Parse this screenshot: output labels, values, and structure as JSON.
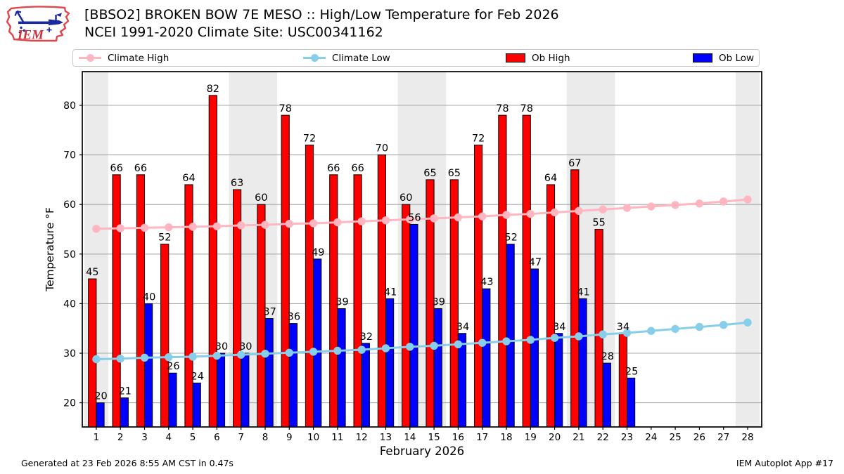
{
  "header": {
    "logo_text": "IEM",
    "title_line1": "[BBSO2] BROKEN BOW 7E MESO :: High/Low Temperature for Feb 2026",
    "title_line2": "NCEI 1991-2020 Climate Site: USC00341162"
  },
  "legend": {
    "items": [
      {
        "label": "Climate High",
        "marker": "line-dot",
        "color": "#ffb6c1"
      },
      {
        "label": "Climate Low",
        "marker": "line-dot",
        "color": "#87ceeb"
      },
      {
        "label": "Ob High",
        "marker": "swatch",
        "color": "#ff0000"
      },
      {
        "label": "Ob Low",
        "marker": "swatch",
        "color": "#0000ff"
      }
    ]
  },
  "footer": {
    "left": "Generated at 23 Feb 2026 8:55 AM CST in 0.47s",
    "right": "IEM Autoplot App #17"
  },
  "chart_data": {
    "type": "bar",
    "title": "[BBSO2] BROKEN BOW 7E MESO :: High/Low Temperature for Feb 2026",
    "subtitle": "NCEI 1991-2020 Climate Site: USC00341162",
    "xlabel": "February 2026",
    "ylabel": "Temperature °F",
    "x": [
      1,
      2,
      3,
      4,
      5,
      6,
      7,
      8,
      9,
      10,
      11,
      12,
      13,
      14,
      15,
      16,
      17,
      18,
      19,
      20,
      21,
      22,
      23,
      24,
      25,
      26,
      27,
      28
    ],
    "yticks": [
      20,
      30,
      40,
      50,
      60,
      70,
      80
    ],
    "ylim": [
      15.1,
      86.8
    ],
    "xlim": [
      0.42,
      28.58
    ],
    "grid": "horizontal",
    "gridline_color": "#a8a8a8",
    "weekend_shading_days": [
      [
        1,
        1
      ],
      [
        7,
        8
      ],
      [
        14,
        15
      ],
      [
        21,
        22
      ],
      [
        28,
        28
      ]
    ],
    "shading_color": "#ebebeb",
    "bar_value_labels_shown": true,
    "legend_position": "top",
    "series": [
      {
        "name": "Climate High",
        "type": "line",
        "color": "#ffb6c1",
        "values": [
          55.1,
          55.2,
          55.3,
          55.4,
          55.5,
          55.6,
          55.8,
          55.9,
          56.1,
          56.2,
          56.4,
          56.6,
          56.8,
          57.0,
          57.2,
          57.4,
          57.6,
          57.9,
          58.1,
          58.4,
          58.7,
          59.0,
          59.3,
          59.6,
          59.9,
          60.2,
          60.6,
          61.0
        ]
      },
      {
        "name": "Climate Low",
        "type": "line",
        "color": "#87ceeb",
        "values": [
          28.8,
          28.9,
          29.1,
          29.2,
          29.3,
          29.5,
          29.7,
          29.9,
          30.1,
          30.3,
          30.5,
          30.7,
          31.0,
          31.3,
          31.5,
          31.8,
          32.1,
          32.4,
          32.7,
          33.1,
          33.4,
          33.8,
          34.1,
          34.5,
          34.9,
          35.3,
          35.7,
          36.2
        ]
      },
      {
        "name": "Ob High",
        "type": "bar",
        "color": "#ff0000",
        "values": [
          45,
          66,
          66,
          52,
          64,
          82,
          63,
          60,
          78,
          72,
          66,
          66,
          70,
          60,
          65,
          65,
          72,
          78,
          78,
          64,
          67,
          55,
          34,
          null,
          null,
          null,
          null,
          null
        ]
      },
      {
        "name": "Ob Low",
        "type": "bar",
        "color": "#0000ff",
        "values": [
          20,
          21,
          40,
          26,
          24,
          30,
          30,
          37,
          36,
          49,
          39,
          32,
          41,
          56,
          39,
          34,
          43,
          52,
          47,
          34,
          41,
          28,
          25,
          null,
          null,
          null,
          null,
          null
        ]
      }
    ]
  }
}
